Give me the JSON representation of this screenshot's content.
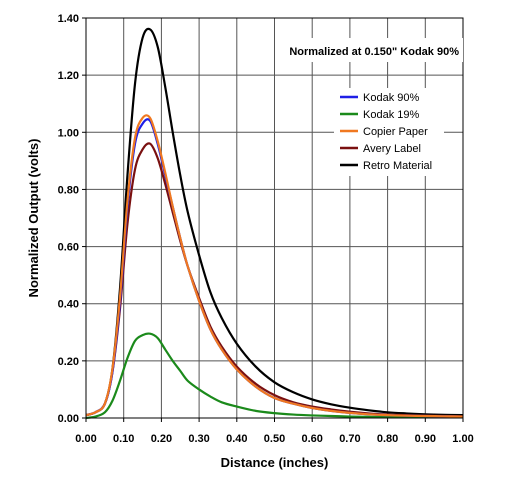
{
  "chart_data": {
    "type": "line",
    "annotation": "Normalized at 0.150\" Kodak 90%",
    "xlabel": "Distance (inches)",
    "ylabel": "Normalized Output (volts)",
    "xlim": [
      0,
      1.0
    ],
    "ylim": [
      0,
      1.4
    ],
    "x_ticks": [
      "0.00",
      "0.10",
      "0.20",
      "0.30",
      "0.40",
      "0.50",
      "0.60",
      "0.70",
      "0.80",
      "0.90",
      "1.00"
    ],
    "y_ticks": [
      "0.00",
      "0.20",
      "0.40",
      "0.60",
      "0.80",
      "1.00",
      "1.20",
      "1.40"
    ],
    "grid": true,
    "legend_position": "top-right",
    "x": [
      0.0,
      0.025,
      0.05,
      0.07,
      0.09,
      0.11,
      0.13,
      0.15,
      0.17,
      0.19,
      0.21,
      0.23,
      0.25,
      0.27,
      0.3,
      0.33,
      0.36,
      0.4,
      0.45,
      0.5,
      0.55,
      0.6,
      0.65,
      0.7,
      0.75,
      0.8,
      0.85,
      0.9,
      0.95,
      1.0
    ],
    "series": [
      {
        "name": "Kodak 90%",
        "color": "#1f1fe6",
        "values": [
          0.01,
          0.02,
          0.05,
          0.16,
          0.4,
          0.74,
          0.96,
          1.03,
          1.04,
          0.96,
          0.85,
          0.74,
          0.63,
          0.53,
          0.41,
          0.31,
          0.24,
          0.17,
          0.11,
          0.07,
          0.05,
          0.035,
          0.025,
          0.018,
          0.013,
          0.01,
          0.008,
          0.007,
          0.006,
          0.005
        ]
      },
      {
        "name": "Kodak 19%",
        "color": "#1b8a1b",
        "values": [
          0.0,
          0.005,
          0.02,
          0.06,
          0.13,
          0.21,
          0.27,
          0.29,
          0.295,
          0.28,
          0.24,
          0.2,
          0.165,
          0.13,
          0.1,
          0.075,
          0.055,
          0.04,
          0.025,
          0.017,
          0.012,
          0.009,
          0.007,
          0.005,
          0.004,
          0.003,
          0.003,
          0.002,
          0.002,
          0.002
        ]
      },
      {
        "name": "Copier Paper",
        "color": "#f07820",
        "values": [
          0.01,
          0.02,
          0.05,
          0.17,
          0.42,
          0.76,
          0.98,
          1.05,
          1.05,
          0.97,
          0.86,
          0.74,
          0.63,
          0.53,
          0.41,
          0.31,
          0.24,
          0.17,
          0.11,
          0.07,
          0.05,
          0.035,
          0.025,
          0.018,
          0.013,
          0.01,
          0.008,
          0.007,
          0.006,
          0.005
        ]
      },
      {
        "name": "Avery Label",
        "color": "#7a1010",
        "values": [
          0.01,
          0.02,
          0.05,
          0.16,
          0.38,
          0.68,
          0.87,
          0.94,
          0.96,
          0.91,
          0.82,
          0.72,
          0.62,
          0.53,
          0.42,
          0.32,
          0.25,
          0.18,
          0.12,
          0.08,
          0.055,
          0.04,
          0.03,
          0.022,
          0.016,
          0.012,
          0.01,
          0.008,
          0.007,
          0.006
        ]
      },
      {
        "name": "Retro Material",
        "color": "#000000",
        "values": [
          0.01,
          0.02,
          0.05,
          0.17,
          0.45,
          0.85,
          1.17,
          1.33,
          1.36,
          1.3,
          1.16,
          1.0,
          0.85,
          0.72,
          0.57,
          0.44,
          0.35,
          0.26,
          0.18,
          0.125,
          0.09,
          0.065,
          0.048,
          0.036,
          0.027,
          0.02,
          0.016,
          0.013,
          0.011,
          0.01
        ]
      }
    ]
  }
}
